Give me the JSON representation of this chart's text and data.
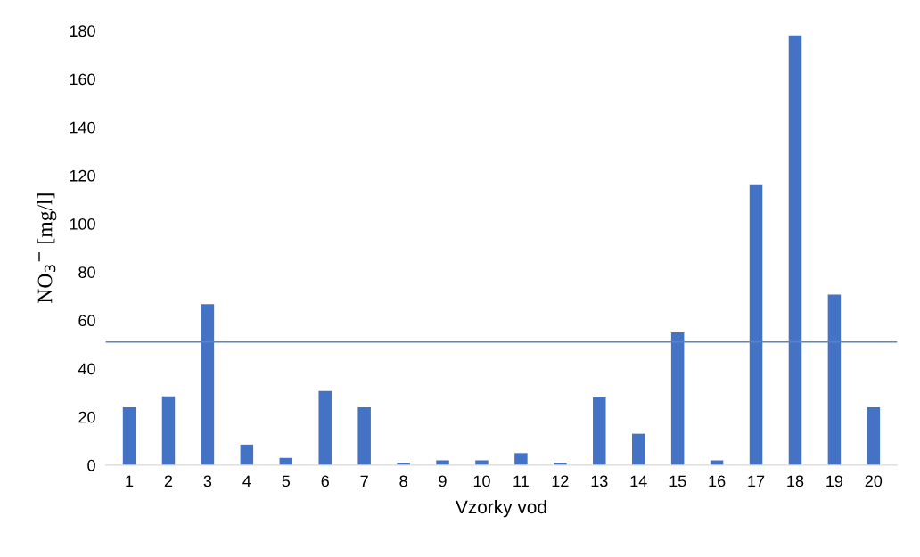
{
  "chart_data": {
    "type": "bar",
    "xlabel": "Vzorky vod",
    "ylabel": "NO$_{3}$$^{−}$ [mg/l]",
    "categories": [
      "1",
      "2",
      "3",
      "4",
      "5",
      "6",
      "7",
      "8",
      "9",
      "10",
      "11",
      "12",
      "13",
      "14",
      "15",
      "16",
      "17",
      "18",
      "19",
      "20"
    ],
    "values": [
      24,
      28.5,
      66.7,
      8.5,
      3,
      30.7,
      24,
      1,
      2,
      2,
      5,
      1,
      28,
      13,
      55,
      2,
      116,
      178,
      70.7,
      24
    ],
    "color": "#4472c4",
    "ylim": [
      0,
      180
    ],
    "yticks": [
      0,
      20,
      40,
      60,
      80,
      100,
      120,
      140,
      160,
      180
    ],
    "grid": false,
    "ref_lines": [
      {
        "axis": "y",
        "value": 51,
        "color": "#5b84c4",
        "line_style": "solid"
      }
    ]
  }
}
